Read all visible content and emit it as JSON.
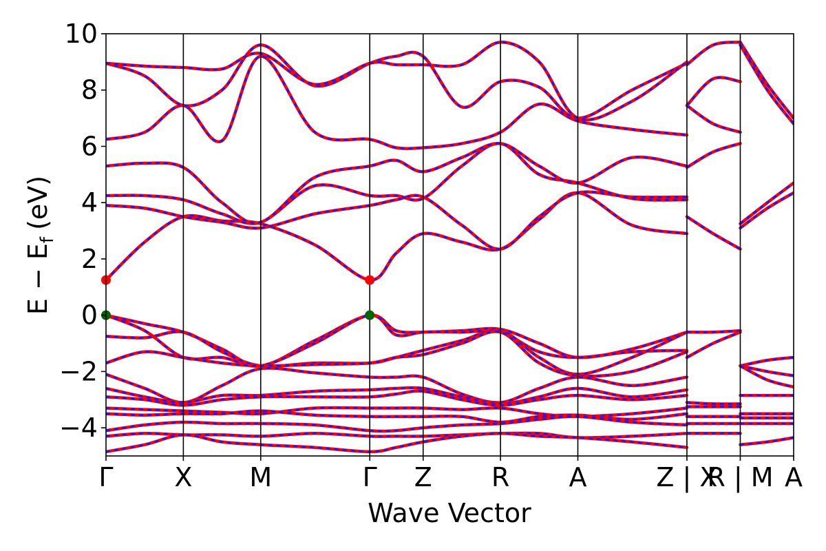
{
  "chart_data": {
    "type": "line",
    "xlabel": "Wave Vector",
    "ylabel_main": "E − E",
    "ylabel_sub": "f",
    "ylabel_unit": "(eV)",
    "ylim": [
      -5,
      10
    ],
    "yticks": [
      -4,
      -2,
      0,
      2,
      4,
      6,
      8,
      10
    ],
    "ytick_labels": [
      "−4",
      "−2",
      "0",
      "2",
      "4",
      "6",
      "8",
      "10"
    ],
    "kpath": [
      {
        "label": "Γ",
        "x": 0.0
      },
      {
        "label": "X",
        "x": 1.0
      },
      {
        "label": "M",
        "x": 2.0
      },
      {
        "label": "Γ",
        "x": 3.41
      },
      {
        "label": "Z",
        "x": 4.1
      },
      {
        "label": "R",
        "x": 5.1
      },
      {
        "label": "A",
        "x": 6.1
      },
      {
        "label": "Z | X",
        "x": 7.51
      },
      {
        "label": "R | M",
        "x": 8.2
      },
      {
        "label": "A",
        "x": 8.89
      }
    ],
    "xlim": [
      0,
      8.89
    ],
    "series_colors": {
      "line": "#ff0000",
      "dash": "#1a1aff",
      "cbm": "#ff0000",
      "vbm": "#006400"
    },
    "markers": [
      {
        "name": "CBM",
        "x": 0.0,
        "y": 1.25,
        "color": "#ff0000"
      },
      {
        "name": "CBM",
        "x": 3.41,
        "y": 1.25,
        "color": "#ff0000"
      },
      {
        "name": "VBM",
        "x": 0.0,
        "y": 0.0,
        "color": "#006400"
      },
      {
        "name": "VBM",
        "x": 3.41,
        "y": 0.0,
        "color": "#006400"
      }
    ],
    "bands": [
      {
        "x": [
          0,
          0.5,
          1,
          1.5,
          2,
          2.7,
          3.41,
          3.75,
          4.1,
          4.6,
          5.1,
          5.6,
          6.1,
          6.8,
          7.51
        ],
        "y": [
          1.25,
          2.6,
          3.5,
          3.35,
          3.25,
          2.5,
          1.25,
          2.2,
          2.9,
          2.6,
          2.35,
          3.4,
          4.35,
          3.2,
          2.9
        ]
      },
      {
        "x": [
          0,
          0.5,
          1,
          1.5,
          2,
          2.7,
          3.41,
          3.75,
          4.1,
          4.6,
          5.1,
          5.6,
          6.1,
          6.8,
          7.51
        ],
        "y": [
          3.9,
          3.8,
          3.5,
          3.3,
          3.1,
          3.6,
          3.9,
          4.1,
          4.2,
          3.2,
          2.35,
          3.5,
          4.35,
          4.2,
          4.2
        ]
      },
      {
        "x": [
          0,
          0.5,
          1,
          1.5,
          2,
          2.7,
          3.41,
          3.75,
          4.1,
          4.6,
          5.1,
          5.6,
          6.1,
          6.8,
          7.51
        ],
        "y": [
          4.25,
          4.25,
          4.1,
          3.6,
          3.3,
          4.6,
          4.25,
          4.25,
          4.15,
          5.3,
          6.1,
          5.0,
          4.7,
          4.15,
          4.1
        ]
      },
      {
        "x": [
          0,
          0.5,
          1,
          1.5,
          2,
          2.7,
          3.41,
          3.75,
          4.1,
          4.6,
          5.1,
          5.6,
          6.1,
          6.8,
          7.51
        ],
        "y": [
          5.3,
          5.4,
          5.25,
          4.0,
          3.3,
          4.9,
          5.3,
          5.5,
          5.1,
          5.6,
          6.1,
          5.3,
          4.7,
          5.6,
          5.3
        ]
      },
      {
        "x": [
          0,
          0.5,
          1,
          1.5,
          2,
          2.7,
          3.41,
          3.75,
          4.1,
          4.6,
          5.1,
          5.6,
          6.1,
          6.8,
          7.51
        ],
        "y": [
          6.25,
          6.5,
          7.45,
          6.2,
          9.2,
          6.5,
          6.25,
          5.95,
          5.95,
          6.1,
          6.5,
          7.5,
          6.9,
          6.6,
          6.4
        ]
      },
      {
        "x": [
          0,
          0.5,
          1,
          1.5,
          2,
          2.7,
          3.41,
          3.75,
          4.1,
          4.6,
          5.1,
          5.6,
          6.1,
          6.8,
          7.51
        ],
        "y": [
          8.95,
          8.5,
          7.45,
          8.0,
          9.6,
          8.15,
          8.95,
          9.2,
          9.2,
          7.4,
          8.3,
          8.1,
          7.0,
          8.0,
          8.95
        ]
      },
      {
        "x": [
          0,
          0.5,
          1,
          1.5,
          2,
          2.7,
          3.41,
          3.75,
          4.1,
          4.6,
          5.1,
          5.6,
          6.1,
          6.8,
          7.51
        ],
        "y": [
          8.95,
          8.85,
          8.8,
          8.75,
          9.3,
          8.2,
          8.95,
          8.9,
          8.9,
          8.9,
          9.7,
          9.0,
          7.0,
          7.6,
          9.0
        ]
      },
      {
        "x": [
          0,
          0.5,
          1,
          1.5,
          2,
          2.7,
          3.41,
          3.75,
          4.1,
          4.6,
          5.1,
          5.6,
          6.1,
          6.8,
          7.51
        ],
        "y": [
          0.0,
          -0.3,
          -0.6,
          -1.2,
          -1.8,
          -0.9,
          0.0,
          -0.55,
          -0.6,
          -0.55,
          -0.5,
          -1.0,
          -1.5,
          -1.2,
          -0.6
        ]
      },
      {
        "x": [
          0,
          0.5,
          1,
          1.5,
          2,
          2.7,
          3.41,
          3.75,
          4.1,
          4.6,
          5.1,
          5.6,
          6.1,
          6.8,
          7.51
        ],
        "y": [
          0.0,
          -0.55,
          -1.5,
          -1.5,
          -1.8,
          -1.0,
          0.0,
          -0.7,
          -0.6,
          -0.6,
          -0.6,
          -1.3,
          -1.5,
          -1.3,
          -1.25
        ]
      },
      {
        "x": [
          0,
          0.5,
          1,
          1.5,
          2,
          2.7,
          3.41,
          3.75,
          4.1,
          4.6,
          5.1,
          5.6,
          6.1,
          6.8,
          7.51
        ],
        "y": [
          -0.75,
          -0.8,
          -0.6,
          -1.3,
          -1.8,
          -1.7,
          -1.7,
          -1.5,
          -1.25,
          -0.9,
          -0.55,
          -1.5,
          -2.1,
          -1.5,
          -0.6
        ]
      },
      {
        "x": [
          0,
          0.5,
          1,
          1.5,
          2,
          2.7,
          3.41,
          3.75,
          4.1,
          4.6,
          5.1,
          5.6,
          6.1,
          6.8,
          7.51
        ],
        "y": [
          -1.7,
          -1.3,
          -1.5,
          -1.7,
          -1.8,
          -1.75,
          -1.7,
          -1.5,
          -1.4,
          -1.0,
          -0.6,
          -1.7,
          -2.15,
          -2.0,
          -1.3
        ]
      },
      {
        "x": [
          0,
          0.5,
          1,
          1.5,
          2,
          2.7,
          3.41,
          3.75,
          4.1,
          4.6,
          5.1,
          5.6,
          6.1,
          6.8,
          7.51
        ],
        "y": [
          -2.1,
          -2.6,
          -3.1,
          -2.5,
          -1.9,
          -2.05,
          -2.2,
          -2.2,
          -2.2,
          -2.8,
          -3.1,
          -2.6,
          -2.2,
          -2.5,
          -2.2
        ]
      },
      {
        "x": [
          0,
          0.5,
          1,
          1.5,
          2,
          2.7,
          3.41,
          3.75,
          4.1,
          4.6,
          5.1,
          5.6,
          6.1,
          6.8,
          7.51
        ],
        "y": [
          -2.6,
          -2.9,
          -3.1,
          -2.85,
          -2.85,
          -2.7,
          -2.65,
          -2.6,
          -2.6,
          -2.9,
          -3.15,
          -2.9,
          -2.6,
          -2.9,
          -2.65
        ]
      },
      {
        "x": [
          0,
          0.5,
          1,
          1.5,
          2,
          2.7,
          3.41,
          3.75,
          4.1,
          4.6,
          5.1,
          5.6,
          6.1,
          6.8,
          7.51
        ],
        "y": [
          -2.9,
          -3.0,
          -3.2,
          -3.0,
          -2.9,
          -2.9,
          -2.9,
          -2.8,
          -2.7,
          -3.0,
          -3.2,
          -3.0,
          -2.85,
          -3.0,
          -2.85
        ]
      },
      {
        "x": [
          0,
          0.5,
          1,
          1.5,
          2,
          2.7,
          3.41,
          3.75,
          4.1,
          4.6,
          5.1,
          5.6,
          6.1,
          6.8,
          7.51
        ],
        "y": [
          -3.3,
          -3.35,
          -3.4,
          -3.45,
          -3.5,
          -3.3,
          -3.3,
          -3.3,
          -3.3,
          -3.35,
          -3.3,
          -3.5,
          -3.6,
          -3.5,
          -3.3
        ]
      },
      {
        "x": [
          0,
          0.5,
          1,
          1.5,
          2,
          2.7,
          3.41,
          3.75,
          4.1,
          4.6,
          5.1,
          5.6,
          6.1,
          6.8,
          7.51
        ],
        "y": [
          -3.5,
          -3.55,
          -3.5,
          -3.5,
          -3.4,
          -3.55,
          -3.6,
          -3.6,
          -3.6,
          -3.6,
          -3.8,
          -3.6,
          -3.55,
          -3.7,
          -3.5
        ]
      },
      {
        "x": [
          0,
          0.5,
          1,
          1.5,
          2,
          2.7,
          3.41,
          3.75,
          4.1,
          4.6,
          5.1,
          5.6,
          6.1,
          6.8,
          7.51
        ],
        "y": [
          -4.1,
          -3.9,
          -3.8,
          -3.85,
          -3.85,
          -3.9,
          -4.1,
          -4.1,
          -4.0,
          -3.9,
          -3.85,
          -3.7,
          -3.6,
          -3.8,
          -3.9
        ]
      },
      {
        "x": [
          0,
          0.5,
          1,
          1.5,
          2,
          2.7,
          3.41,
          3.75,
          4.1,
          4.6,
          5.1,
          5.6,
          6.1,
          6.8,
          7.51
        ],
        "y": [
          -4.3,
          -4.2,
          -4.25,
          -4.25,
          -4.3,
          -4.2,
          -4.3,
          -4.3,
          -4.3,
          -4.25,
          -4.2,
          -4.2,
          -4.35,
          -4.3,
          -4.2
        ]
      },
      {
        "x": [
          0,
          0.5,
          1,
          1.5,
          2,
          2.7,
          3.41,
          3.75,
          4.1,
          4.6,
          5.1,
          5.6,
          6.1,
          6.8,
          7.51
        ],
        "y": [
          -4.85,
          -4.6,
          -4.25,
          -4.5,
          -4.6,
          -4.7,
          -4.85,
          -4.7,
          -4.5,
          -4.3,
          -4.2,
          -4.3,
          -4.35,
          -4.5,
          -4.7
        ]
      },
      {
        "x": [
          7.51,
          7.85,
          8.2
        ],
        "y": [
          8.9,
          9.6,
          9.7
        ]
      },
      {
        "x": [
          7.51,
          7.85,
          8.2
        ],
        "y": [
          7.45,
          8.4,
          8.3
        ]
      },
      {
        "x": [
          7.51,
          7.85,
          8.2
        ],
        "y": [
          7.45,
          6.8,
          6.5
        ]
      },
      {
        "x": [
          7.51,
          7.85,
          8.2
        ],
        "y": [
          5.25,
          5.8,
          6.1
        ]
      },
      {
        "x": [
          7.51,
          7.85,
          8.2
        ],
        "y": [
          3.5,
          2.9,
          2.35
        ]
      },
      {
        "x": [
          7.51,
          7.85,
          8.2
        ],
        "y": [
          -0.6,
          -0.6,
          -0.55
        ]
      },
      {
        "x": [
          7.51,
          7.85,
          8.2
        ],
        "y": [
          -1.5,
          -1.0,
          -0.6
        ]
      },
      {
        "x": [
          7.51,
          7.85,
          8.2
        ],
        "y": [
          -3.1,
          -3.15,
          -3.15
        ]
      },
      {
        "x": [
          7.51,
          7.85,
          8.2
        ],
        "y": [
          -3.25,
          -3.25,
          -3.25
        ]
      },
      {
        "x": [
          7.51,
          7.85,
          8.2
        ],
        "y": [
          -3.6,
          -3.6,
          -3.6
        ]
      },
      {
        "x": [
          7.51,
          7.85,
          8.2
        ],
        "y": [
          -3.85,
          -3.85,
          -3.85
        ]
      },
      {
        "x": [
          7.51,
          7.85,
          8.2
        ],
        "y": [
          -4.2,
          -4.2,
          -4.2
        ]
      },
      {
        "x": [
          8.2,
          8.55,
          8.89
        ],
        "y": [
          9.7,
          8.2,
          7.0
        ]
      },
      {
        "x": [
          8.2,
          8.55,
          8.89
        ],
        "y": [
          9.6,
          8.0,
          6.8
        ]
      },
      {
        "x": [
          8.2,
          8.55,
          8.89
        ],
        "y": [
          3.25,
          4.0,
          4.7
        ]
      },
      {
        "x": [
          8.2,
          8.55,
          8.89
        ],
        "y": [
          3.1,
          3.8,
          4.35
        ]
      },
      {
        "x": [
          8.2,
          8.55,
          8.89
        ],
        "y": [
          -1.8,
          -1.6,
          -1.5
        ]
      },
      {
        "x": [
          8.2,
          8.55,
          8.89
        ],
        "y": [
          -1.8,
          -2.0,
          -2.15
        ]
      },
      {
        "x": [
          8.2,
          8.55,
          8.89
        ],
        "y": [
          -1.8,
          -2.3,
          -2.55
        ]
      },
      {
        "x": [
          8.2,
          8.55,
          8.89
        ],
        "y": [
          -2.85,
          -2.85,
          -2.85
        ]
      },
      {
        "x": [
          8.2,
          8.55,
          8.89
        ],
        "y": [
          -3.5,
          -3.5,
          -3.5
        ]
      },
      {
        "x": [
          8.2,
          8.55,
          8.89
        ],
        "y": [
          -3.65,
          -3.65,
          -3.65
        ]
      },
      {
        "x": [
          8.2,
          8.55,
          8.89
        ],
        "y": [
          -3.85,
          -3.85,
          -3.85
        ]
      },
      {
        "x": [
          8.2,
          8.55,
          8.89
        ],
        "y": [
          -4.6,
          -4.5,
          -4.35
        ]
      }
    ]
  }
}
